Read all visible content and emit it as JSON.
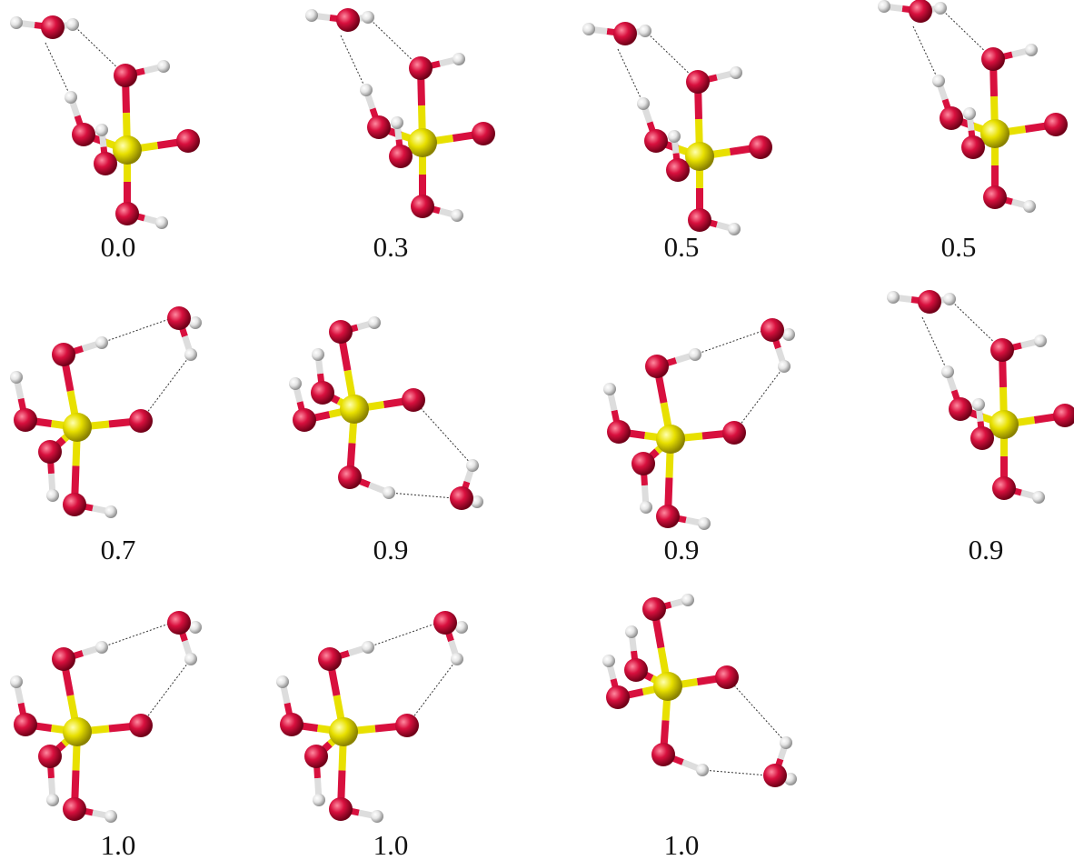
{
  "panels": [
    {
      "label": "0.0"
    },
    {
      "label": "0.3"
    },
    {
      "label": "0.5"
    },
    {
      "label": "0.5"
    },
    {
      "label": "0.7"
    },
    {
      "label": "0.9"
    },
    {
      "label": "0.9"
    },
    {
      "label": "0.9"
    },
    {
      "label": "1.0"
    },
    {
      "label": "1.0"
    },
    {
      "label": "1.0"
    }
  ]
}
